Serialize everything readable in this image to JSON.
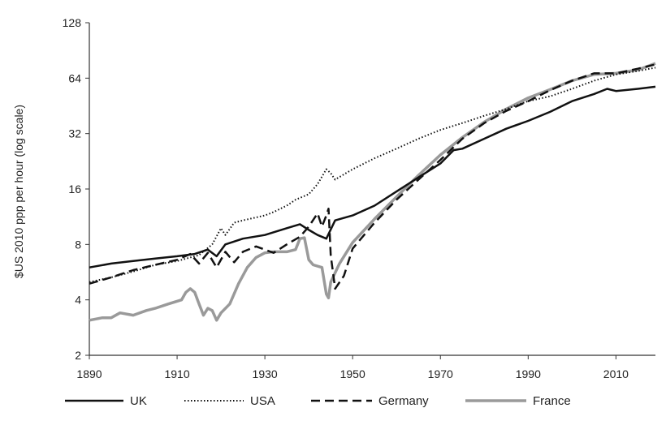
{
  "chart_data": {
    "type": "line",
    "title": "",
    "xlabel": "",
    "ylabel": "$US 2010 ppp per hour (log scale)",
    "y_scale": "log2",
    "xlim": [
      1890,
      2019
    ],
    "ylim": [
      2,
      128
    ],
    "x_ticks": [
      "1890",
      "1910",
      "1930",
      "1950",
      "1970",
      "1990",
      "2010"
    ],
    "x_tick_values": [
      1890,
      1910,
      1930,
      1950,
      1970,
      1990,
      2010
    ],
    "y_ticks": [
      "2",
      "4",
      "8",
      "16",
      "32",
      "64",
      "128"
    ],
    "y_tick_values": [
      2,
      4,
      8,
      16,
      32,
      64,
      128
    ],
    "grid": false,
    "legend_position": "bottom",
    "series": [
      {
        "name": "UK",
        "color": "#111111",
        "style": "solid",
        "points": [
          [
            1890,
            6.0
          ],
          [
            1895,
            6.3
          ],
          [
            1900,
            6.5
          ],
          [
            1905,
            6.7
          ],
          [
            1910,
            6.9
          ],
          [
            1914,
            7.1
          ],
          [
            1917,
            7.5
          ],
          [
            1919,
            6.9
          ],
          [
            1921,
            8.0
          ],
          [
            1925,
            8.6
          ],
          [
            1930,
            9.0
          ],
          [
            1935,
            9.8
          ],
          [
            1938,
            10.3
          ],
          [
            1940,
            9.6
          ],
          [
            1942,
            9.0
          ],
          [
            1944,
            8.6
          ],
          [
            1946,
            10.8
          ],
          [
            1950,
            11.5
          ],
          [
            1955,
            13.0
          ],
          [
            1960,
            15.5
          ],
          [
            1965,
            18.5
          ],
          [
            1970,
            22.0
          ],
          [
            1973,
            26.0
          ],
          [
            1975,
            26.5
          ],
          [
            1980,
            30.0
          ],
          [
            1985,
            34.0
          ],
          [
            1990,
            37.5
          ],
          [
            1995,
            42.0
          ],
          [
            2000,
            48.0
          ],
          [
            2005,
            52.5
          ],
          [
            2008,
            56.0
          ],
          [
            2010,
            54.5
          ],
          [
            2015,
            56.0
          ],
          [
            2019,
            57.5
          ]
        ]
      },
      {
        "name": "USA",
        "color": "#111111",
        "style": "dotted",
        "points": [
          [
            1890,
            5.0
          ],
          [
            1895,
            5.3
          ],
          [
            1900,
            5.7
          ],
          [
            1905,
            6.2
          ],
          [
            1910,
            6.5
          ],
          [
            1915,
            7.0
          ],
          [
            1918,
            8.0
          ],
          [
            1920,
            9.8
          ],
          [
            1921,
            9.0
          ],
          [
            1923,
            10.5
          ],
          [
            1925,
            10.8
          ],
          [
            1930,
            11.5
          ],
          [
            1932,
            12.0
          ],
          [
            1935,
            13.0
          ],
          [
            1937,
            14.0
          ],
          [
            1940,
            15.0
          ],
          [
            1942,
            17.0
          ],
          [
            1944,
            20.5
          ],
          [
            1945,
            19.5
          ],
          [
            1946,
            18.0
          ],
          [
            1950,
            20.5
          ],
          [
            1955,
            23.5
          ],
          [
            1960,
            26.5
          ],
          [
            1965,
            30.0
          ],
          [
            1970,
            33.5
          ],
          [
            1975,
            36.5
          ],
          [
            1980,
            40.0
          ],
          [
            1985,
            43.5
          ],
          [
            1990,
            48.0
          ],
          [
            1995,
            51.0
          ],
          [
            2000,
            56.0
          ],
          [
            2005,
            62.0
          ],
          [
            2010,
            67.0
          ],
          [
            2015,
            70.0
          ],
          [
            2019,
            73.0
          ]
        ]
      },
      {
        "name": "Germany",
        "color": "#111111",
        "style": "dashed",
        "points": [
          [
            1890,
            4.9
          ],
          [
            1895,
            5.3
          ],
          [
            1900,
            5.8
          ],
          [
            1905,
            6.2
          ],
          [
            1910,
            6.6
          ],
          [
            1913,
            7.1
          ],
          [
            1915,
            6.3
          ],
          [
            1917,
            7.2
          ],
          [
            1919,
            6.0
          ],
          [
            1921,
            7.3
          ],
          [
            1923,
            6.4
          ],
          [
            1925,
            7.3
          ],
          [
            1928,
            7.8
          ],
          [
            1932,
            7.2
          ],
          [
            1935,
            8.0
          ],
          [
            1938,
            8.8
          ],
          [
            1940,
            10.0
          ],
          [
            1942,
            11.8
          ],
          [
            1943,
            10.0
          ],
          [
            1944,
            11.5
          ],
          [
            1944.5,
            12.5
          ],
          [
            1945,
            7.0
          ],
          [
            1946,
            4.6
          ],
          [
            1948,
            5.4
          ],
          [
            1950,
            7.6
          ],
          [
            1955,
            10.5
          ],
          [
            1960,
            14.0
          ],
          [
            1965,
            18.0
          ],
          [
            1970,
            23.0
          ],
          [
            1975,
            30.0
          ],
          [
            1980,
            36.5
          ],
          [
            1985,
            42.5
          ],
          [
            1990,
            48.0
          ],
          [
            1995,
            55.0
          ],
          [
            2000,
            62.0
          ],
          [
            2005,
            68.0
          ],
          [
            2010,
            68.0
          ],
          [
            2015,
            72.0
          ],
          [
            2019,
            76.0
          ]
        ]
      },
      {
        "name": "France",
        "color": "#9a9a9a",
        "style": "solid",
        "points": [
          [
            1890,
            3.1
          ],
          [
            1893,
            3.2
          ],
          [
            1895,
            3.2
          ],
          [
            1897,
            3.4
          ],
          [
            1900,
            3.3
          ],
          [
            1903,
            3.5
          ],
          [
            1905,
            3.6
          ],
          [
            1908,
            3.8
          ],
          [
            1911,
            4.0
          ],
          [
            1912,
            4.4
          ],
          [
            1913,
            4.6
          ],
          [
            1914,
            4.4
          ],
          [
            1915,
            3.8
          ],
          [
            1916,
            3.3
          ],
          [
            1917,
            3.6
          ],
          [
            1918,
            3.5
          ],
          [
            1919,
            3.1
          ],
          [
            1920,
            3.4
          ],
          [
            1922,
            3.8
          ],
          [
            1924,
            4.9
          ],
          [
            1926,
            6.0
          ],
          [
            1928,
            6.8
          ],
          [
            1930,
            7.2
          ],
          [
            1932,
            7.3
          ],
          [
            1935,
            7.3
          ],
          [
            1937,
            7.5
          ],
          [
            1938,
            8.6
          ],
          [
            1939,
            8.7
          ],
          [
            1940,
            6.6
          ],
          [
            1941,
            6.2
          ],
          [
            1943,
            6.0
          ],
          [
            1944,
            4.3
          ],
          [
            1944.5,
            4.1
          ],
          [
            1945,
            5.0
          ],
          [
            1947,
            6.3
          ],
          [
            1950,
            8.2
          ],
          [
            1955,
            11.0
          ],
          [
            1960,
            14.5
          ],
          [
            1965,
            19.0
          ],
          [
            1970,
            24.5
          ],
          [
            1975,
            30.5
          ],
          [
            1980,
            37.0
          ],
          [
            1985,
            43.5
          ],
          [
            1990,
            50.0
          ],
          [
            1995,
            55.5
          ],
          [
            2000,
            62.0
          ],
          [
            2005,
            67.0
          ],
          [
            2010,
            68.0
          ],
          [
            2015,
            71.0
          ],
          [
            2019,
            77.0
          ]
        ]
      }
    ]
  }
}
